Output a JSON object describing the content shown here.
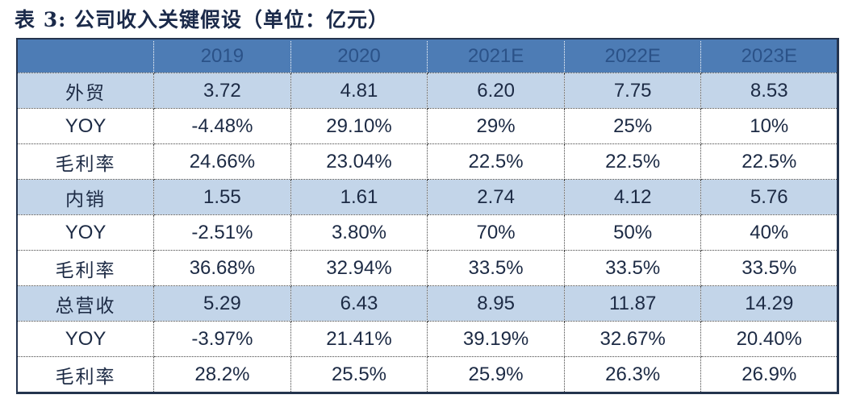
{
  "title": "表 3: 公司收入关键假设（单位：亿元）",
  "table": {
    "columns": [
      "",
      "2019",
      "2020",
      "2021E",
      "2022E",
      "2023E"
    ],
    "rows": [
      {
        "label": "外贸",
        "highlight": true,
        "values": [
          "3.72",
          "4.81",
          "6.20",
          "7.75",
          "8.53"
        ]
      },
      {
        "label": "YOY",
        "highlight": false,
        "values": [
          "-4.48%",
          "29.10%",
          "29%",
          "25%",
          "10%"
        ]
      },
      {
        "label": "毛利率",
        "highlight": false,
        "values": [
          "24.66%",
          "23.04%",
          "22.5%",
          "22.5%",
          "22.5%"
        ]
      },
      {
        "label": "内销",
        "highlight": true,
        "values": [
          "1.55",
          "1.61",
          "2.74",
          "4.12",
          "5.76"
        ]
      },
      {
        "label": "YOY",
        "highlight": false,
        "values": [
          "-2.51%",
          "3.80%",
          "70%",
          "50%",
          "40%"
        ]
      },
      {
        "label": "毛利率",
        "highlight": false,
        "values": [
          "36.68%",
          "32.94%",
          "33.5%",
          "33.5%",
          "33.5%"
        ]
      },
      {
        "label": "总营收",
        "highlight": true,
        "values": [
          "5.29",
          "6.43",
          "8.95",
          "11.87",
          "14.29"
        ]
      },
      {
        "label": "YOY",
        "highlight": false,
        "values": [
          "-3.97%",
          "21.41%",
          "39.19%",
          "32.67%",
          "20.40%"
        ]
      },
      {
        "label": "毛利率",
        "highlight": false,
        "values": [
          "28.2%",
          "25.5%",
          "25.9%",
          "26.3%",
          "26.9%"
        ]
      }
    ]
  },
  "chart_data": {
    "type": "table",
    "title": "表 3: 公司收入关键假设（单位：亿元）",
    "categories": [
      "2019",
      "2020",
      "2021E",
      "2022E",
      "2023E"
    ],
    "series": [
      {
        "name": "外贸",
        "values": [
          3.72,
          4.81,
          6.2,
          7.75,
          8.53
        ]
      },
      {
        "name": "外贸 YOY",
        "values": [
          "-4.48%",
          "29.10%",
          "29%",
          "25%",
          "10%"
        ]
      },
      {
        "name": "外贸 毛利率",
        "values": [
          "24.66%",
          "23.04%",
          "22.5%",
          "22.5%",
          "22.5%"
        ]
      },
      {
        "name": "内销",
        "values": [
          1.55,
          1.61,
          2.74,
          4.12,
          5.76
        ]
      },
      {
        "name": "内销 YOY",
        "values": [
          "-2.51%",
          "3.80%",
          "70%",
          "50%",
          "40%"
        ]
      },
      {
        "name": "内销 毛利率",
        "values": [
          "36.68%",
          "32.94%",
          "33.5%",
          "33.5%",
          "33.5%"
        ]
      },
      {
        "name": "总营收",
        "values": [
          5.29,
          6.43,
          8.95,
          11.87,
          14.29
        ]
      },
      {
        "name": "总营收 YOY",
        "values": [
          "-3.97%",
          "21.41%",
          "39.19%",
          "32.67%",
          "20.40%"
        ]
      },
      {
        "name": "总营收 毛利率",
        "values": [
          "28.2%",
          "25.5%",
          "25.9%",
          "26.3%",
          "26.9%"
        ]
      }
    ]
  },
  "colors": {
    "header_bg": "#4D7CB5",
    "header_text": "#2B5288",
    "row_highlight_bg": "#C3D5E9",
    "row_bg": "#FFFFFF",
    "body_text": "#1C2A44",
    "title_text": "#1B2A4A",
    "table_border": "#24344E",
    "grid_dotted": "#454545"
  }
}
